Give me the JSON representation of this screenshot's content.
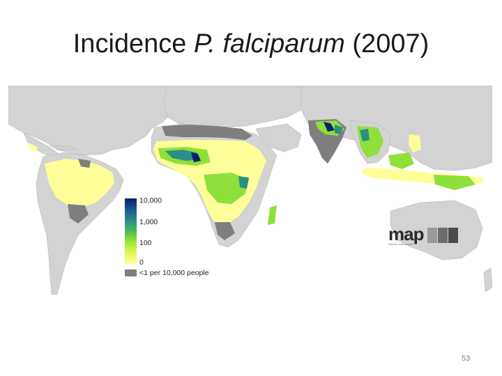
{
  "slide": {
    "title_prefix": "Incidence ",
    "title_italic": "P. falciparum",
    "title_suffix": " (2007)",
    "page_number": "53"
  },
  "legend": {
    "label_10000": "10,000",
    "label_1000": "1,000",
    "label_100": "100",
    "label_0": "0",
    "label_low": "<1 per 10,000 people"
  },
  "logo": {
    "text": "map",
    "subtitle": "malaria atlas project"
  },
  "colors": {
    "land_no_risk": "#d3d3d3",
    "low_risk_grey": "#7f7f7f",
    "yellow_low": "#ffff99",
    "green_mid": "#8fe03a",
    "teal_high": "#2b8f86",
    "navy_max": "#0b1f6b",
    "ocean": "#ffffff"
  }
}
